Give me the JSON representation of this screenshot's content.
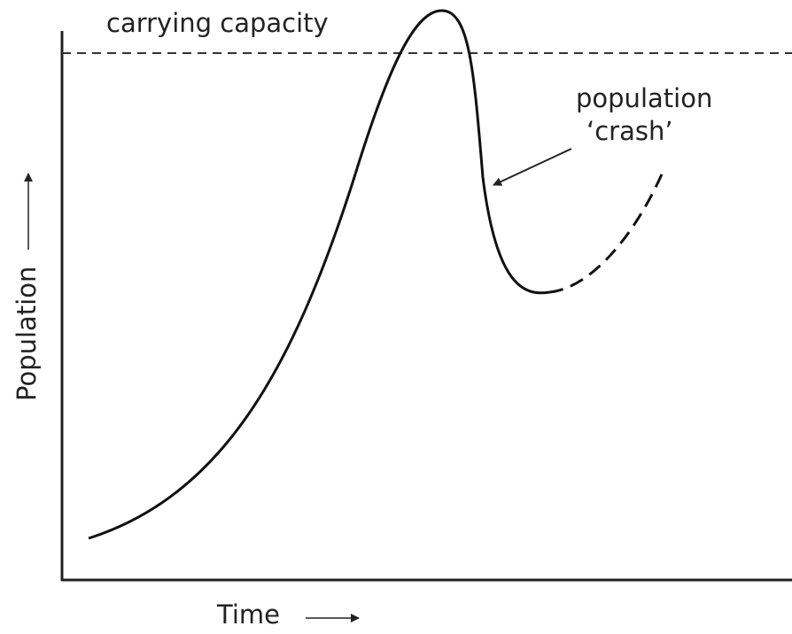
{
  "labels": {
    "carrying_capacity": "carrying capacity",
    "crash_line1": "population",
    "crash_line2": "‘crash’"
  },
  "axes": {
    "y_label": "Population",
    "x_label": "Time"
  }
}
